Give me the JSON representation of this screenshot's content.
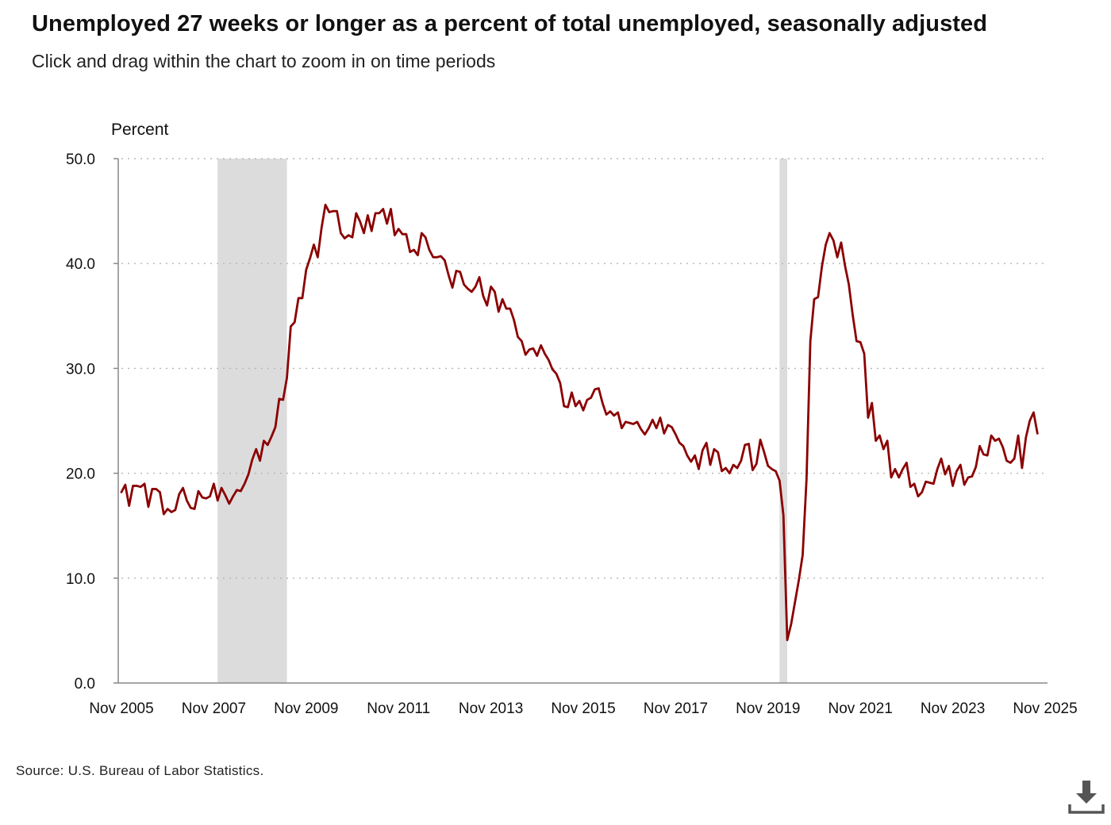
{
  "header": {
    "title": "Unemployed 27 weeks or longer as a percent of total unemployed, seasonally adjusted",
    "subtitle": "Click and drag within the chart to zoom in on time periods"
  },
  "footer": {
    "source": "Source: U.S. Bureau of Labor Statistics."
  },
  "toolbar": {
    "download_icon": "download-icon"
  },
  "chart_data": {
    "type": "line",
    "title": "Unemployed 27 weeks or longer as a percent of total unemployed, seasonally adjusted",
    "ylabel": "Percent",
    "xlabel": "",
    "ylim": [
      0,
      50
    ],
    "yticks": [
      "0.0",
      "10.0",
      "20.0",
      "30.0",
      "40.0",
      "50.0"
    ],
    "xticks": [
      "Nov 2005",
      "Nov 2007",
      "Nov 2009",
      "Nov 2011",
      "Nov 2013",
      "Nov 2015",
      "Nov 2017",
      "Nov 2019",
      "Nov 2021",
      "Nov 2023",
      "Nov 2025"
    ],
    "grid": "horizontal dotted",
    "legend": "none",
    "line_color": "#8b0000",
    "recession_color": "#dcdcdc",
    "recessions": [
      {
        "start": "Dec 2007",
        "end": "Jun 2009"
      },
      {
        "start": "Feb 2020",
        "end": "Apr 2020"
      }
    ],
    "series": [
      {
        "start": "Nov 2005",
        "frequency": "monthly",
        "values": [
          18.2,
          18.9,
          16.9,
          18.8,
          18.8,
          18.7,
          19.0,
          16.8,
          18.5,
          18.5,
          18.2,
          16.1,
          16.6,
          16.3,
          16.5,
          18.0,
          18.6,
          17.4,
          16.7,
          16.6,
          18.3,
          17.7,
          17.6,
          17.8,
          19.0,
          17.4,
          18.6,
          17.9,
          17.1,
          17.8,
          18.4,
          18.3,
          19.0,
          19.9,
          21.3,
          22.3,
          21.2,
          23.1,
          22.7,
          23.5,
          24.4,
          27.1,
          27.0,
          29.1,
          34.0,
          34.4,
          36.7,
          36.7,
          39.4,
          40.5,
          41.8,
          40.6,
          43.4,
          45.6,
          44.9,
          45.0,
          45.0,
          42.9,
          42.4,
          42.7,
          42.5,
          44.8,
          44.0,
          42.9,
          44.6,
          43.1,
          44.8,
          44.8,
          45.2,
          43.8,
          45.2,
          42.7,
          43.3,
          42.8,
          42.8,
          41.1,
          41.3,
          40.8,
          42.9,
          42.5,
          41.3,
          40.6,
          40.6,
          40.7,
          40.3,
          38.9,
          37.7,
          39.3,
          39.2,
          38.0,
          37.6,
          37.3,
          37.8,
          38.7,
          36.9,
          36.0,
          37.8,
          37.3,
          35.4,
          36.6,
          35.7,
          35.7,
          34.6,
          33.0,
          32.6,
          31.3,
          31.8,
          31.9,
          31.2,
          32.2,
          31.4,
          30.8,
          29.9,
          29.5,
          28.6,
          26.4,
          26.3,
          27.7,
          26.4,
          26.9,
          26.0,
          27.0,
          27.2,
          28.0,
          28.1,
          26.7,
          25.6,
          25.9,
          25.5,
          25.8,
          24.3,
          24.9,
          24.8,
          24.7,
          24.9,
          24.2,
          23.7,
          24.3,
          25.1,
          24.3,
          25.3,
          23.8,
          24.6,
          24.4,
          23.7,
          22.9,
          22.6,
          21.7,
          21.1,
          21.7,
          20.4,
          22.2,
          22.9,
          20.8,
          22.3,
          22.0,
          20.2,
          20.5,
          20.0,
          20.8,
          20.5,
          21.2,
          22.7,
          22.8,
          20.3,
          20.9,
          23.2,
          22.0,
          20.7,
          20.4,
          20.2,
          19.3,
          16.0,
          4.1,
          5.6,
          7.7,
          9.8,
          12.2,
          19.4,
          32.6,
          36.6,
          36.8,
          39.7,
          41.8,
          42.9,
          42.2,
          40.6,
          42.0,
          39.8,
          38.0,
          35.1,
          32.6,
          32.5,
          31.4,
          25.3,
          26.7,
          23.1,
          23.6,
          22.3,
          23.1,
          19.6,
          20.4,
          19.6,
          20.4,
          21.0,
          18.7,
          19.0,
          17.8,
          18.2,
          19.2,
          19.1,
          19.0,
          20.4,
          21.4,
          19.9,
          20.7,
          18.8,
          20.2,
          20.8,
          18.9,
          19.6,
          19.7,
          20.6,
          22.6,
          21.8,
          21.7,
          23.6,
          23.1,
          23.3,
          22.5,
          21.2,
          21.0,
          21.4,
          23.6,
          20.5,
          23.4,
          25.0,
          25.8,
          23.8
        ]
      }
    ]
  }
}
